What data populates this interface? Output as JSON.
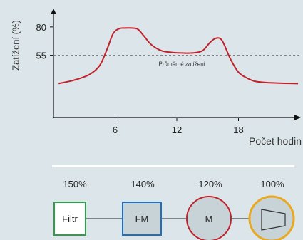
{
  "chart_data": {
    "type": "line",
    "ylabel": "Zatížení (%)",
    "xlabel": "Počet hodin",
    "x_ticks": [
      6,
      12,
      18
    ],
    "y_ticks": [
      55,
      80
    ],
    "reference_line": {
      "value": 55,
      "label": "Průměrné zatížení",
      "style": "dashed"
    },
    "series": [
      {
        "color": "#c0222b",
        "x": [
          0.5,
          2,
          3.5,
          4.5,
          5.2,
          5.8,
          6.4,
          7,
          7.6,
          8.2,
          8.8,
          9.5,
          10.5,
          11.5,
          12.5,
          13.5,
          14.5,
          15.2,
          15.8,
          16.4,
          17.2,
          18,
          18.8,
          19.6,
          20.5,
          21.5,
          22.5,
          23.8
        ],
        "y": [
          30,
          33,
          38,
          46,
          60,
          74,
          78.5,
          79,
          79,
          78,
          72,
          64.5,
          59,
          57.5,
          57,
          57,
          59,
          66,
          70,
          68,
          52,
          40,
          35,
          32,
          31,
          30.5,
          30.2,
          30
        ]
      }
    ]
  },
  "flow": {
    "items": [
      {
        "label": "Filtr",
        "percent": "150%",
        "border": "#2e9e4a",
        "fill": "#ffffff"
      },
      {
        "label": "FM",
        "percent": "140%",
        "border": "#1f6fbf",
        "fill": "#c8d3d8"
      },
      {
        "label": "M",
        "percent": "120%",
        "border": "#c0222b",
        "fill": "#c8d3d8"
      },
      {
        "label": "",
        "percent": "100%",
        "border": "#e8a820",
        "fill": "#c8d3d8",
        "icon": "fan-icon"
      }
    ]
  }
}
